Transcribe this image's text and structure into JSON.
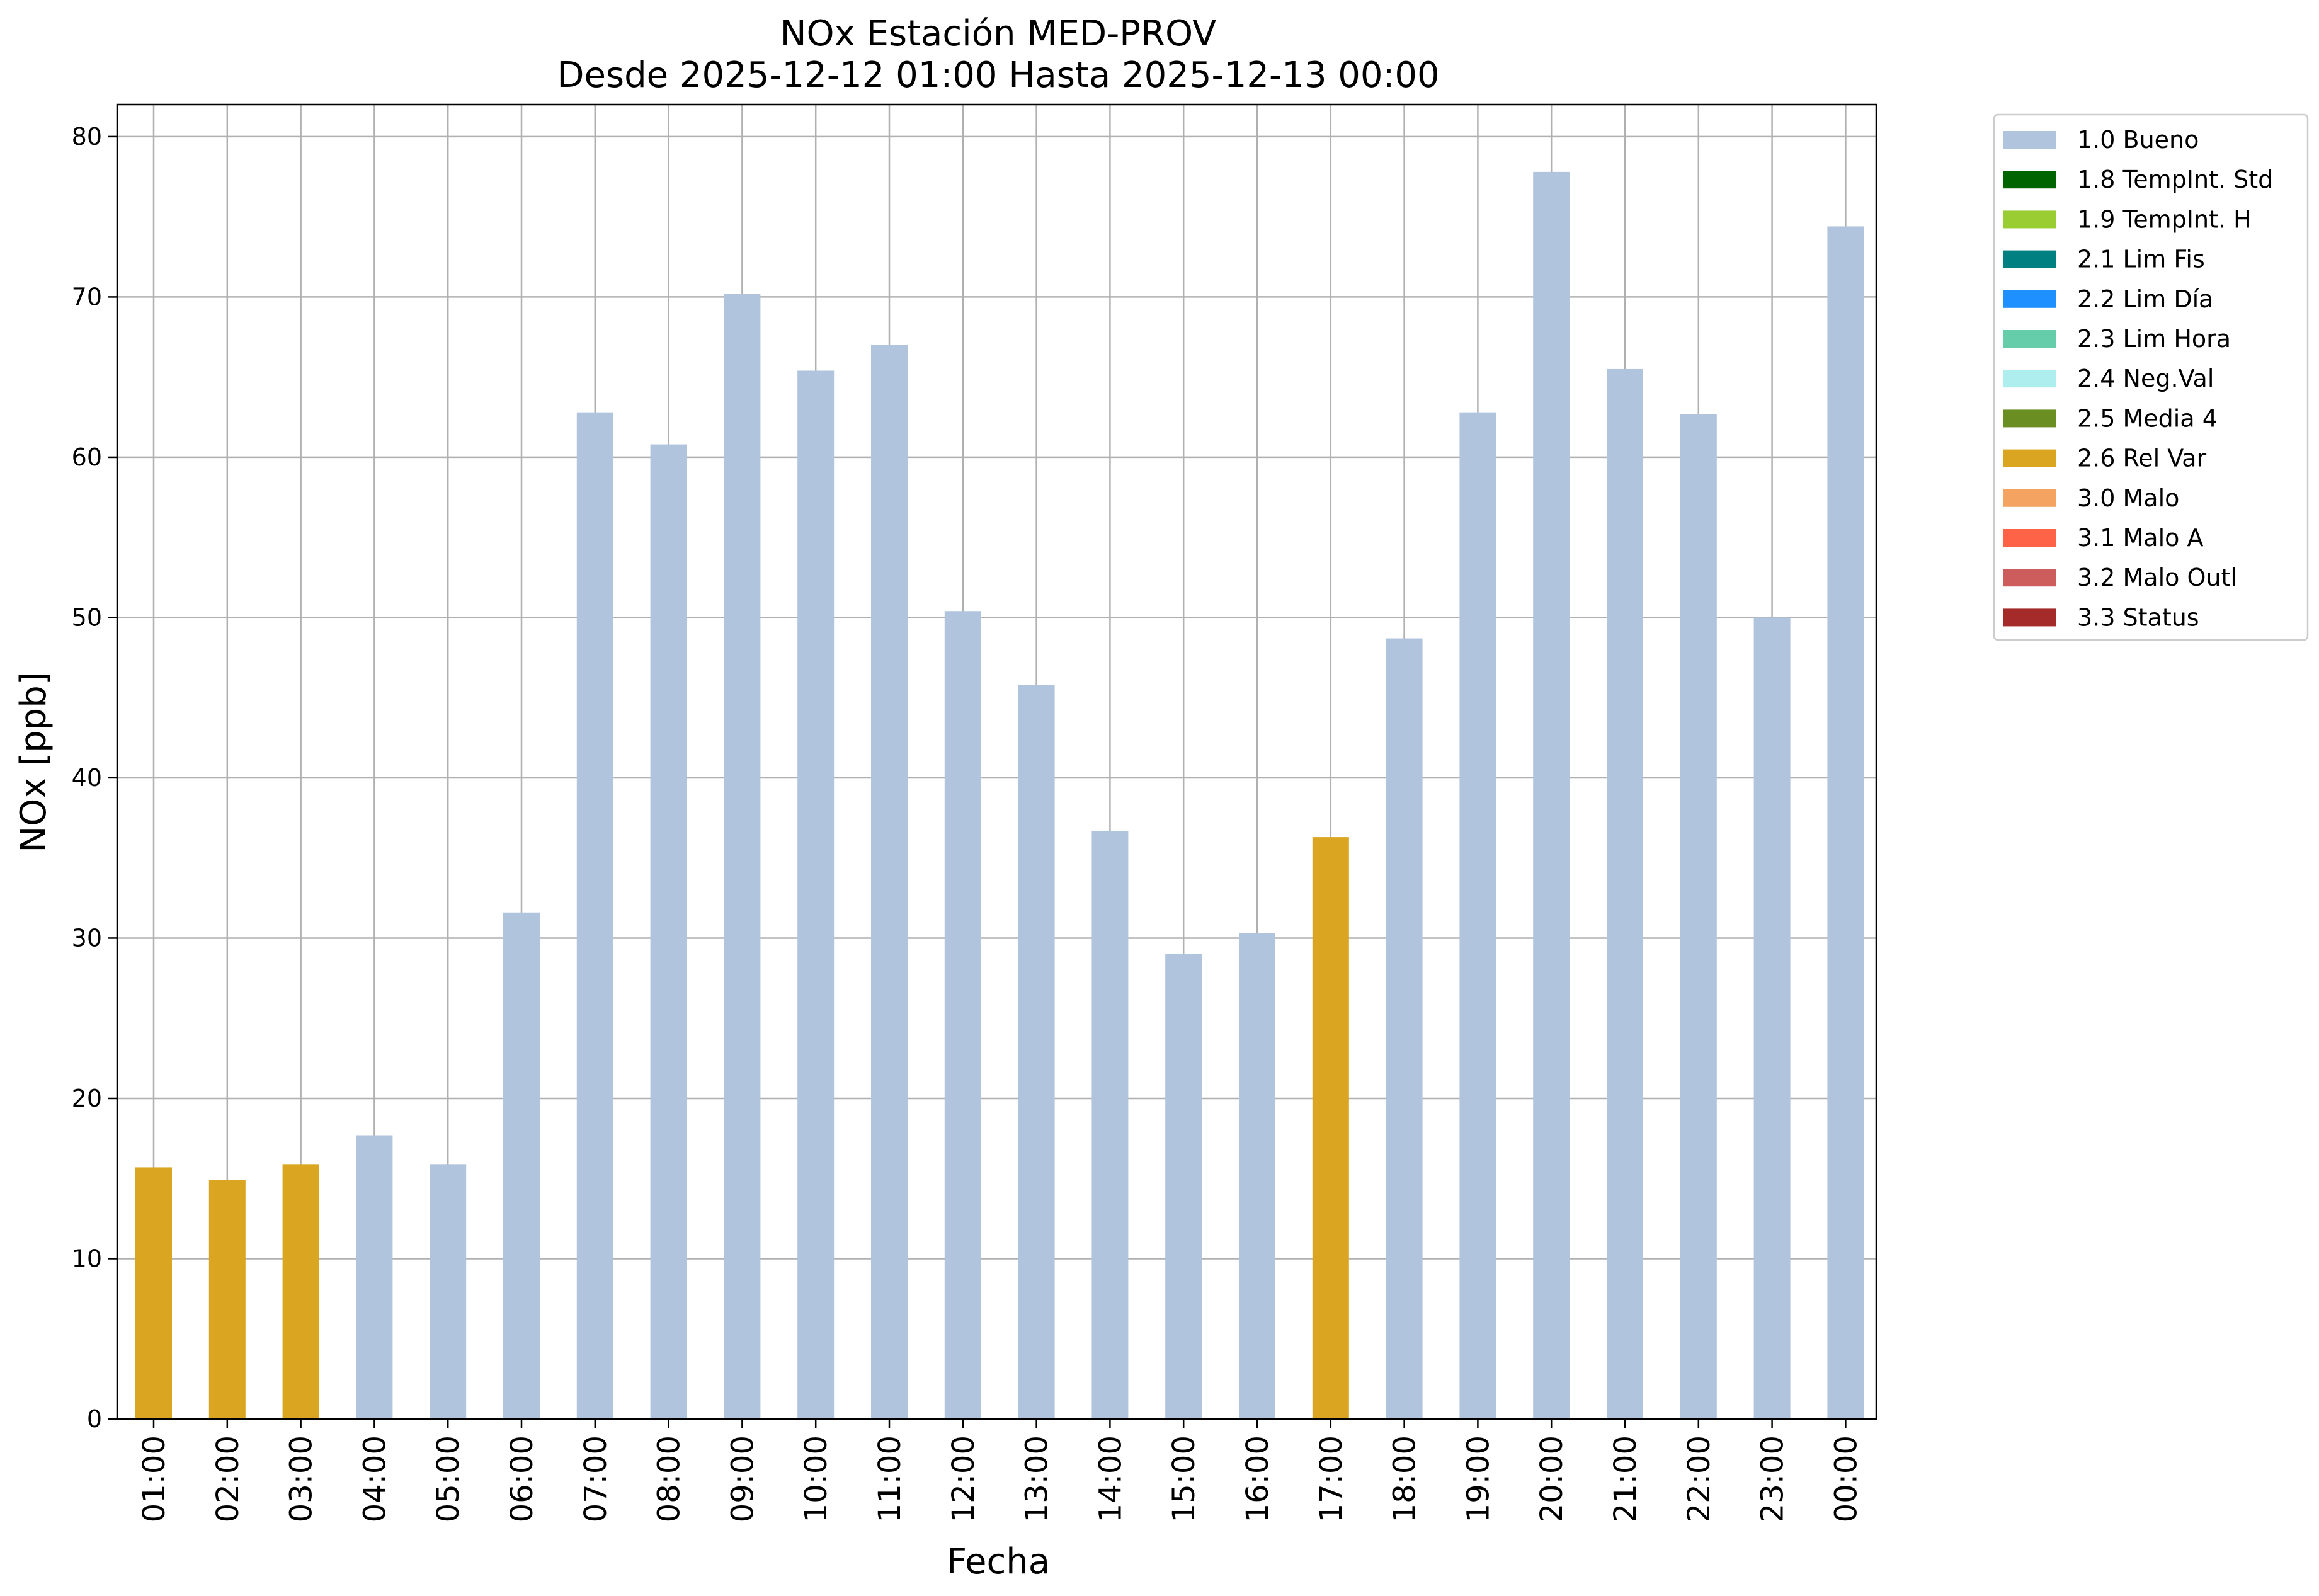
{
  "chart_data": {
    "type": "bar",
    "title": "NOx Estación MED-PROV",
    "subtitle": "Desde 2025-12-12 01:00 Hasta 2025-12-13 00:00",
    "xlabel": "Fecha",
    "ylabel": "NOx [ppb]",
    "ylim": [
      0,
      82
    ],
    "yticks": [
      0,
      10,
      20,
      30,
      40,
      50,
      60,
      70,
      80
    ],
    "grid": true,
    "legend_position": "outside-top-right",
    "categories": [
      "01:00",
      "02:00",
      "03:00",
      "04:00",
      "05:00",
      "06:00",
      "07:00",
      "08:00",
      "09:00",
      "10:00",
      "11:00",
      "12:00",
      "13:00",
      "14:00",
      "15:00",
      "16:00",
      "17:00",
      "18:00",
      "19:00",
      "20:00",
      "21:00",
      "22:00",
      "23:00",
      "00:00"
    ],
    "values": [
      15.7,
      14.9,
      15.9,
      17.7,
      15.9,
      31.6,
      62.8,
      60.8,
      70.2,
      65.4,
      67.0,
      50.4,
      45.8,
      36.7,
      29.0,
      30.3,
      36.3,
      48.7,
      62.8,
      77.8,
      65.5,
      62.7,
      50.0,
      74.4
    ],
    "flags": [
      "2.6 Rel Var",
      "2.6 Rel Var",
      "2.6 Rel Var",
      "1.0 Bueno",
      "1.0 Bueno",
      "1.0 Bueno",
      "1.0 Bueno",
      "1.0 Bueno",
      "1.0 Bueno",
      "1.0 Bueno",
      "1.0 Bueno",
      "1.0 Bueno",
      "1.0 Bueno",
      "1.0 Bueno",
      "1.0 Bueno",
      "1.0 Bueno",
      "2.6 Rel Var",
      "1.0 Bueno",
      "1.0 Bueno",
      "1.0 Bueno",
      "1.0 Bueno",
      "1.0 Bueno",
      "1.0 Bueno",
      "1.0 Bueno"
    ],
    "legend": [
      {
        "label": "1.0 Bueno",
        "color": "#b0c4de"
      },
      {
        "label": "1.8 TempInt. Std",
        "color": "#006400"
      },
      {
        "label": "1.9 TempInt. H",
        "color": "#9acd32"
      },
      {
        "label": "2.1 Lim Fis",
        "color": "#008080"
      },
      {
        "label": "2.2 Lim Día",
        "color": "#1e90ff"
      },
      {
        "label": "2.3 Lim Hora",
        "color": "#66cdaa"
      },
      {
        "label": "2.4 Neg.Val",
        "color": "#afeeee"
      },
      {
        "label": "2.5 Media 4",
        "color": "#6b8e23"
      },
      {
        "label": "2.6 Rel Var",
        "color": "#daa520"
      },
      {
        "label": "3.0 Malo",
        "color": "#f4a460"
      },
      {
        "label": "3.1 Malo A",
        "color": "#ff6347"
      },
      {
        "label": "3.2 Malo Outl",
        "color": "#cd5c5c"
      },
      {
        "label": "3.3 Status",
        "color": "#a52a2a"
      }
    ]
  }
}
